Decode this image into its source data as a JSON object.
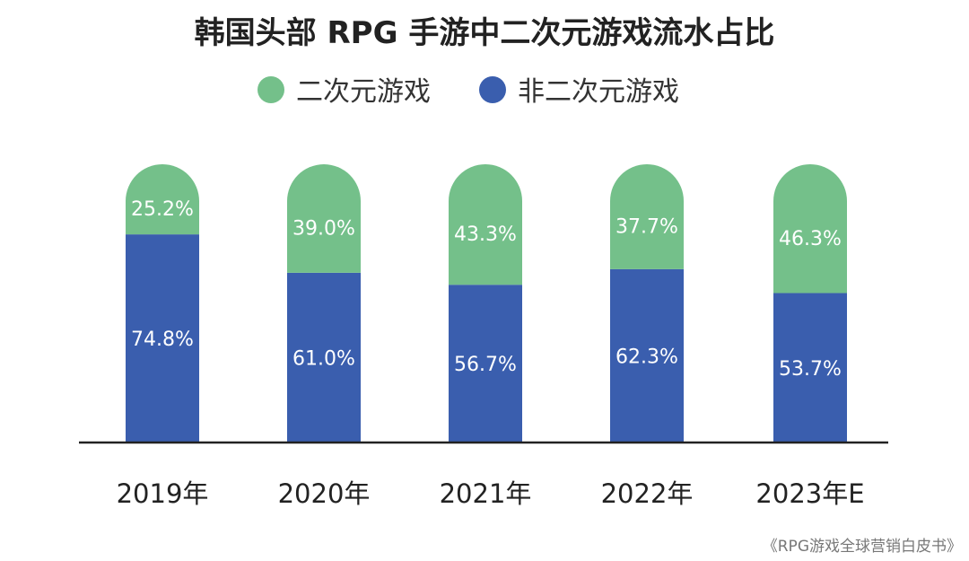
{
  "chart_data": {
    "type": "bar",
    "stacked": true,
    "title": "韩国头部 RPG 手游中二次元游戏流水占比",
    "categories": [
      "2019年",
      "2020年",
      "2021年",
      "2022年",
      "2023年E"
    ],
    "series": [
      {
        "name": "二次元游戏",
        "values": [
          25.2,
          39.0,
          43.3,
          37.7,
          46.3
        ],
        "labels": [
          "25.2%",
          "39.0%",
          "43.3%",
          "37.7%",
          "46.3%"
        ],
        "color": "#74c08a"
      },
      {
        "name": "非二次元游戏",
        "values": [
          74.8,
          61.0,
          56.7,
          62.3,
          53.7
        ],
        "labels": [
          "74.8%",
          "61.0%",
          "56.7%",
          "62.3%",
          "53.7%"
        ],
        "color": "#3a5eae"
      }
    ],
    "ylim": [
      0,
      100
    ],
    "grid": false,
    "legend": "top"
  },
  "source": "《RPG游戏全球营销白皮书》"
}
